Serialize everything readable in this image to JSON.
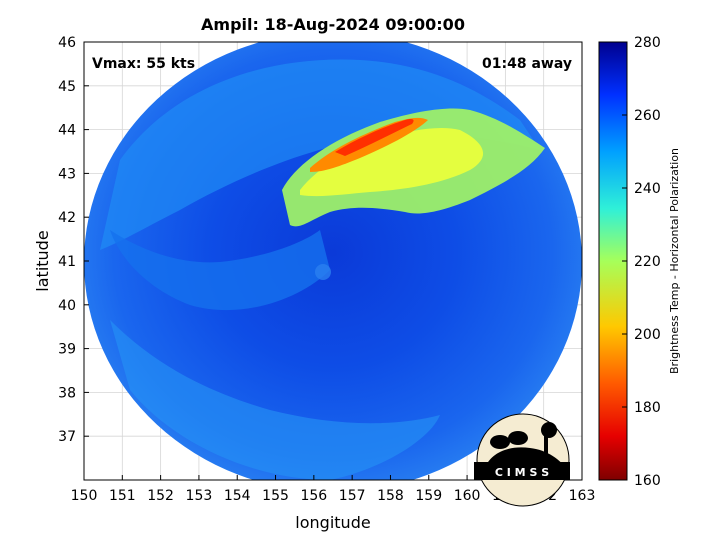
{
  "title": "Ampil: 18-Aug-2024 09:00:00",
  "vmax_label": "Vmax: 55 kts",
  "time_away_label": "01:48 away",
  "xlabel": "longitude",
  "ylabel": "latitude",
  "colorbar_label": "Brightness Temp - Horizontal Polarization",
  "logo_text": "C I M S S",
  "chart_data": {
    "type": "heatmap",
    "title": "Ampil: 18-Aug-2024 09:00:00",
    "xlabel": "longitude",
    "ylabel": "latitude",
    "xlim": [
      150,
      163
    ],
    "ylim": [
      36,
      46
    ],
    "grid": true,
    "x_ticks": [
      150,
      151,
      152,
      153,
      154,
      155,
      156,
      157,
      158,
      159,
      160,
      161,
      162,
      163
    ],
    "y_ticks": [
      37,
      38,
      39,
      40,
      41,
      42,
      43,
      44,
      45,
      46
    ],
    "colorbar": {
      "label": "Brightness Temp - Horizontal Polarization",
      "range": [
        160,
        280
      ],
      "ticks": [
        160,
        180,
        200,
        220,
        240,
        260,
        280
      ],
      "colormap": "jet_reversed"
    },
    "swath": {
      "center_lon": 156.5,
      "center_lat": 41.1,
      "shape": "circular"
    },
    "features": [
      {
        "description": "cold cloud band",
        "lon_range": [
          155,
          159.5
        ],
        "lat_range": [
          42,
          44.4
        ],
        "min_temp": 190
      },
      {
        "description": "eye/center",
        "lon": 156.5,
        "lat": 41.1
      }
    ]
  }
}
